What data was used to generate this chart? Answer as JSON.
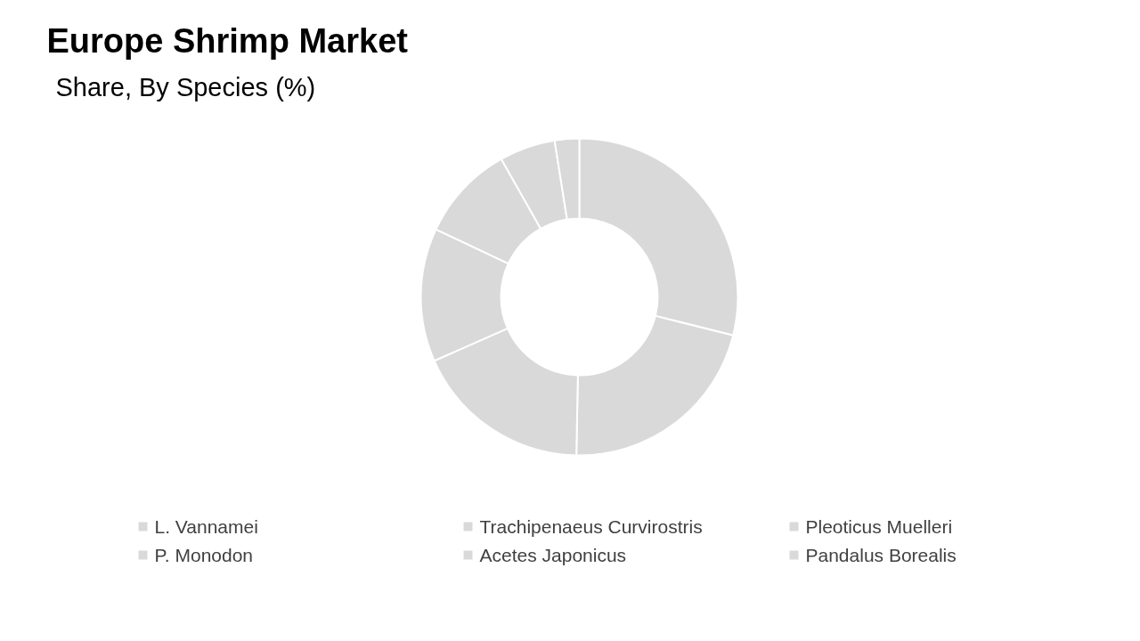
{
  "chart_data": {
    "type": "donut",
    "title": "Europe Shrimp Market",
    "subtitle": "Share, By Species (%)",
    "categories": [
      "L. Vannamei",
      "Trachipenaeus Curvirostris",
      "Pleoticus Muelleri",
      "P. Monodon",
      "Acetes Japonicus",
      "Pandalus Borealis",
      null
    ],
    "values": [
      28.9,
      21.4,
      18.1,
      13.6,
      9.8,
      5.7,
      2.5
    ],
    "colors": [
      "#d9d9d9",
      "#d9d9d9",
      "#d9d9d9",
      "#d9d9d9",
      "#d9d9d9",
      "#d9d9d9",
      "#d9d9d9"
    ],
    "legend": "bottom"
  }
}
